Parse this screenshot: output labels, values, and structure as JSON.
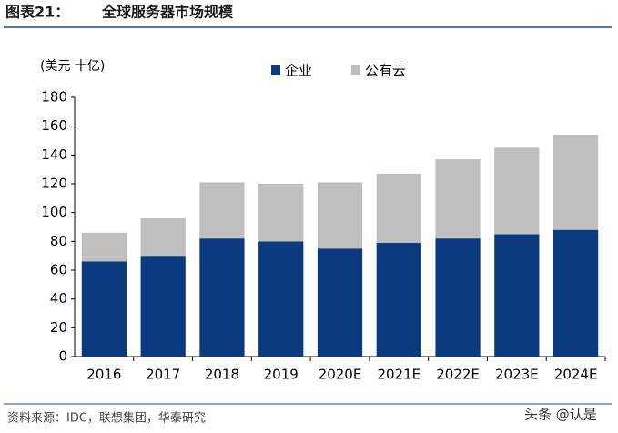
{
  "chart_data": {
    "type": "stacked_bar",
    "figure_label": "图表21：",
    "title": "全球服务器市场规模",
    "y_label": "(美元 十亿)",
    "categories": [
      "2016",
      "2017",
      "2018",
      "2019",
      "2020E",
      "2021E",
      "2022E",
      "2023E",
      "2024E"
    ],
    "series": [
      {
        "name": "企业",
        "color": "#0b3a7e",
        "values": [
          66,
          70,
          82,
          80,
          75,
          79,
          82,
          85,
          88
        ]
      },
      {
        "name": "公有云",
        "color": "#bfbfbf",
        "values": [
          20,
          26,
          39,
          40,
          46,
          48,
          55,
          60,
          66
        ]
      }
    ],
    "ylim": [
      0,
      180
    ],
    "yticks": [
      0,
      20,
      40,
      60,
      80,
      100,
      120,
      140,
      160,
      180
    ],
    "grid": false,
    "source": "资料来源：IDC，联想集团，华泰研究",
    "watermark": "头条 @认是"
  }
}
